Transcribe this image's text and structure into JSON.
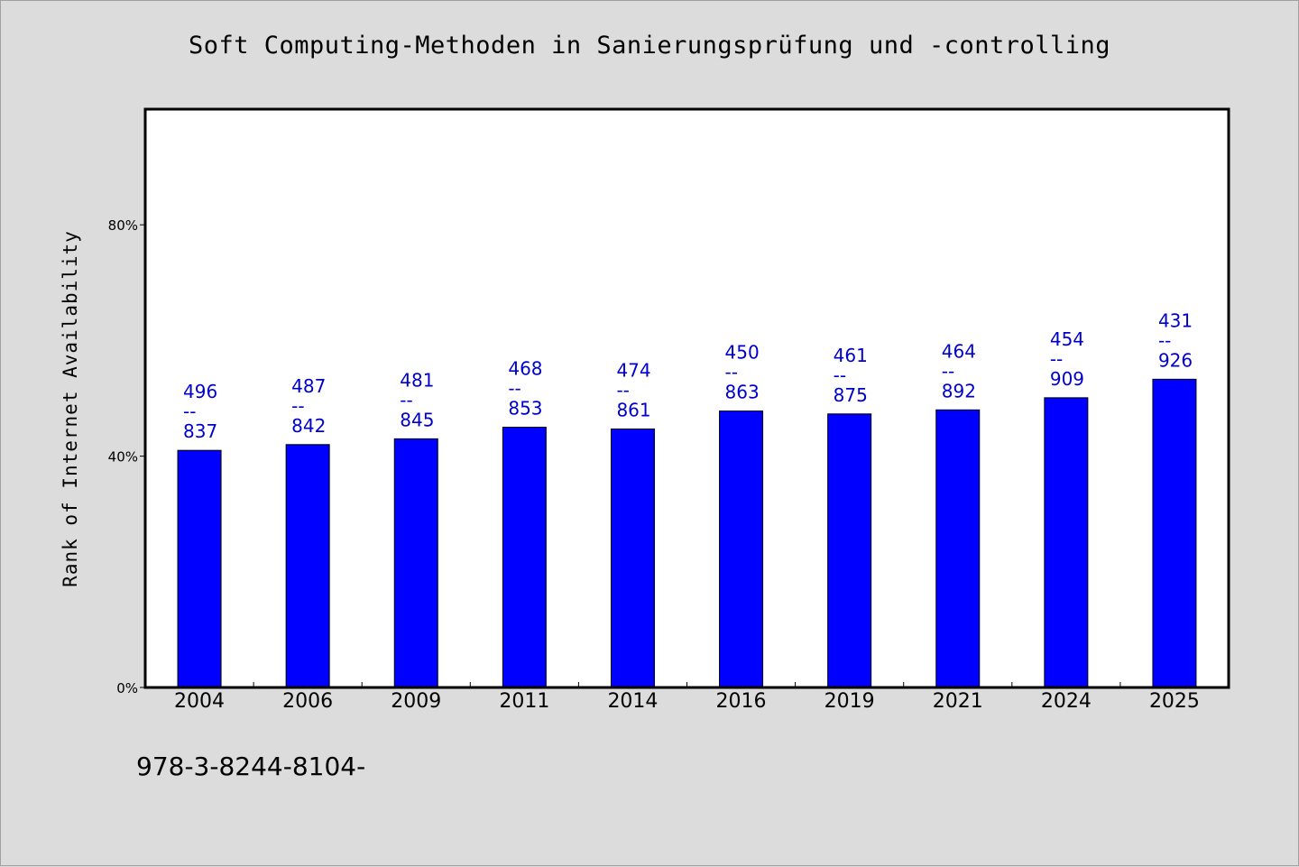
{
  "chart_data": {
    "type": "bar",
    "title": "Soft Computing-Methoden in Sanierungsprüfung und -controlling",
    "xlabel": "",
    "ylabel": "Rank of Internet Availability",
    "categories": [
      "2004",
      "2006",
      "2009",
      "2011",
      "2014",
      "2016",
      "2019",
      "2021",
      "2024",
      "2025"
    ],
    "values": [
      0.41,
      0.42,
      0.43,
      0.45,
      0.447,
      0.478,
      0.473,
      0.48,
      0.501,
      0.533
    ],
    "data_labels": [
      [
        "496",
        "--",
        "837"
      ],
      [
        "487",
        "--",
        "842"
      ],
      [
        "481",
        "--",
        "845"
      ],
      [
        "468",
        "--",
        "853"
      ],
      [
        "474",
        "--",
        "861"
      ],
      [
        "450",
        "--",
        "863"
      ],
      [
        "461",
        "--",
        "875"
      ],
      [
        "464",
        "--",
        "892"
      ],
      [
        "454",
        "--",
        "909"
      ],
      [
        "431",
        "--",
        "926"
      ]
    ],
    "ylim": [
      0,
      1.0
    ],
    "yticks": [
      0,
      0.4,
      0.8
    ],
    "ytick_labels": [
      "0%",
      "40%",
      "80%"
    ],
    "grid": false,
    "legend": "none",
    "colors": {
      "bar": "#0000ff",
      "bar_edge": "#000000",
      "data_label": "#0000cd",
      "plot_background": "#ffffff",
      "figure_background": "#dcdcdc"
    }
  },
  "footer": {
    "code": "978-3-8244-8104-"
  }
}
